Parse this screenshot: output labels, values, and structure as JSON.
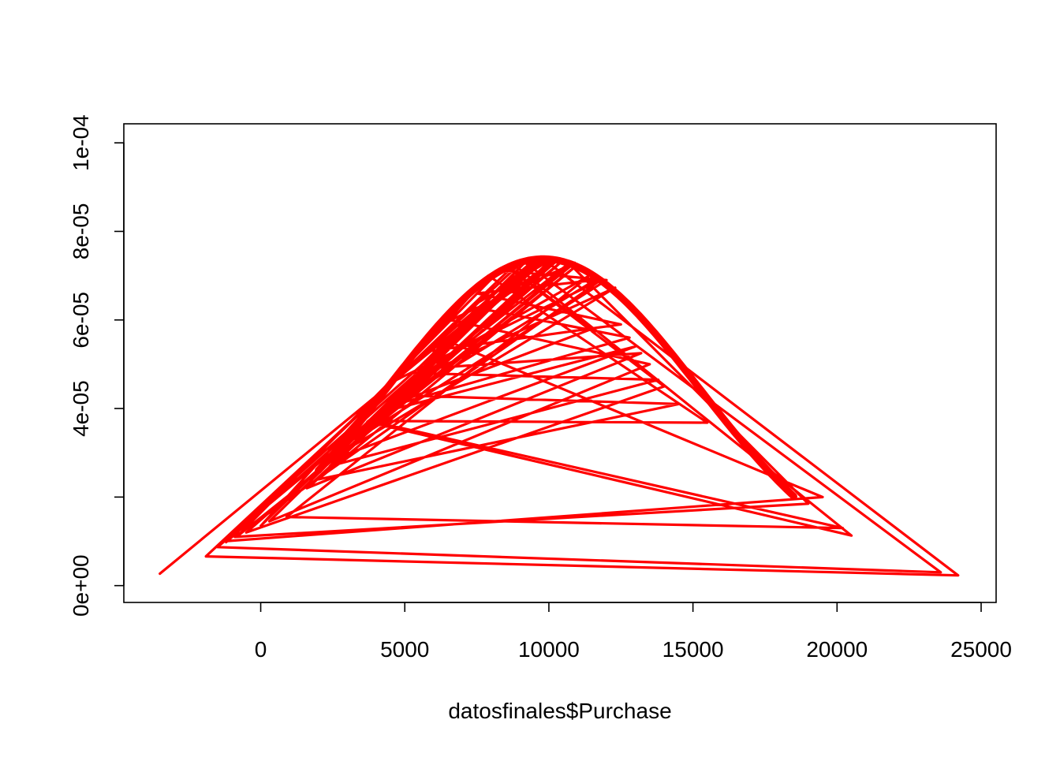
{
  "chart_data": {
    "type": "line",
    "title": "",
    "xlabel": "datosfinales$Purchase",
    "ylabel": "",
    "xlim": [
      -4750,
      25520
    ],
    "ylim": [
      -3.8e-06,
      0.0001043
    ],
    "x_ticks": [
      {
        "value": 0,
        "label": "0"
      },
      {
        "value": 5000,
        "label": "5000"
      },
      {
        "value": 10000,
        "label": "10000"
      },
      {
        "value": 15000,
        "label": "15000"
      },
      {
        "value": 20000,
        "label": "20000"
      },
      {
        "value": 25000,
        "label": "25000"
      }
    ],
    "y_ticks": [
      {
        "value": 0,
        "label": "0e+00"
      },
      {
        "value": 2e-05,
        "label": ""
      },
      {
        "value": 4e-05,
        "label": "4e-05"
      },
      {
        "value": 6e-05,
        "label": "6e-05"
      },
      {
        "value": 8e-05,
        "label": "8e-05"
      },
      {
        "value": 0.0001,
        "label": "1e-04"
      }
    ],
    "grid": false,
    "legend": "none",
    "series": [
      {
        "color": "#ff0000",
        "density_curve": {
          "mean": 9800,
          "sd": 5400,
          "peak": 7.38e-05
        },
        "x": [
          -3500,
          9800,
          24200,
          -1900,
          9100,
          23600,
          -1500,
          10500,
          2900,
          12300,
          5100,
          9900,
          -1200,
          8800,
          20500,
          3700,
          10700,
          19000,
          -900,
          11800,
          4500,
          9500,
          0,
          7900,
          15500,
          3800,
          20200,
          900,
          11400,
          5700,
          13200,
          1600,
          10100,
          7300,
          12800,
          4200,
          11500,
          8600,
          14000,
          -500,
          10300,
          6200,
          19500,
          -1300,
          9700,
          2400,
          13800,
          5300,
          9200,
          4700,
          14500,
          2000,
          11000,
          -800,
          8300,
          12000,
          3300,
          10900,
          6600,
          13500,
          300,
          9600,
          1800,
          10200,
          5900,
          12500,
          7500,
          11600,
          4100,
          13000,
          2700,
          10800
        ],
        "y": [
          2.7e-06,
          7.38e-05,
          2.3e-06,
          6.6e-06,
          7.33e-05,
          3e-06,
          8.7e-06,
          7.35e-05,
          3.04e-05,
          6.73e-05,
          4.6e-05,
          7.38e-05,
          9.8e-06,
          7.24e-05,
          1.13e-05,
          3.7e-05,
          7.28e-05,
          1.85e-05,
          1.1e-05,
          6.9e-05,
          4.58e-05,
          7.36e-05,
          1.35e-05,
          7e-05,
          3.68e-05,
          3.72e-05,
          1.3e-05,
          1.55e-05,
          7e-05,
          4.9e-05,
          5.25e-05,
          2.2e-05,
          7.37e-05,
          6.3e-05,
          5.6e-05,
          4e-05,
          5.8e-05,
          7.18e-05,
          4.5e-05,
          1.2e-05,
          7.35e-05,
          5.6e-05,
          2e-05,
          1e-05,
          7.36e-05,
          2.7e-05,
          4.65e-05,
          4.8e-05,
          7.32e-05,
          4.3e-05,
          4.1e-05,
          2.4e-05,
          7.25e-05,
          1.12e-05,
          7.12e-05,
          6.9e-05,
          3.3e-05,
          7.29e-05,
          6e-05,
          5e-05,
          1.45e-05,
          7.37e-05,
          2.3e-05,
          7.36e-05,
          5.3e-05,
          5.9e-05,
          6.6e-05,
          6.9e-05,
          3.9e-05,
          5.4e-05,
          2.9e-05,
          7.3e-05
        ]
      }
    ]
  }
}
